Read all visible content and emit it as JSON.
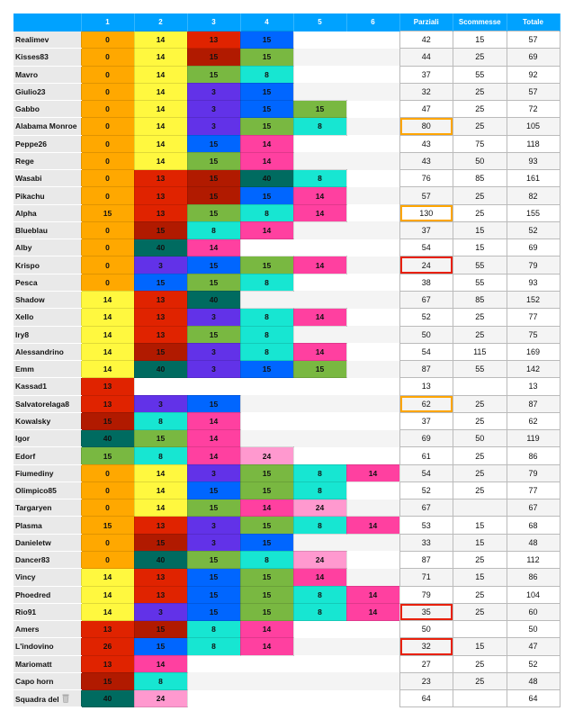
{
  "headers": [
    "",
    "1",
    "2",
    "3",
    "4",
    "5",
    "6",
    "Parziali",
    "Scommesse",
    "Totale"
  ],
  "colors": {
    "O": "#ffa800",
    "Y": "#fff83f",
    "R": "#e02300",
    "D": "#b11a00",
    "G": "#79b841",
    "C": "#17e6d2",
    "B": "#0066ff",
    "P": "#6232e8",
    "K": "#ff40a0",
    "L": "#ff99cf",
    "T": "#006b60"
  },
  "highlight_colors": {
    "orange": "#ffa500",
    "red": "#e8200c"
  },
  "rows": [
    {
      "name": "Realimev",
      "cells": [
        [
          "0",
          "O"
        ],
        [
          "14",
          "Y"
        ],
        [
          "13",
          "R"
        ],
        [
          "15",
          "B"
        ]
      ],
      "parziali": "42",
      "scommesse": "15",
      "totale": "57"
    },
    {
      "name": "Kisses83",
      "cells": [
        [
          "0",
          "O"
        ],
        [
          "14",
          "Y"
        ],
        [
          "15",
          "D"
        ],
        [
          "15",
          "G"
        ]
      ],
      "parziali": "44",
      "scommesse": "25",
      "totale": "69"
    },
    {
      "name": "Mavro",
      "cells": [
        [
          "0",
          "O"
        ],
        [
          "14",
          "Y"
        ],
        [
          "15",
          "G"
        ],
        [
          "8",
          "C"
        ]
      ],
      "parziali": "37",
      "scommesse": "55",
      "totale": "92"
    },
    {
      "name": "Giulio23",
      "cells": [
        [
          "0",
          "O"
        ],
        [
          "14",
          "Y"
        ],
        [
          "3",
          "P"
        ],
        [
          "15",
          "B"
        ]
      ],
      "parziali": "32",
      "scommesse": "25",
      "totale": "57"
    },
    {
      "name": "Gabbo",
      "cells": [
        [
          "0",
          "O"
        ],
        [
          "14",
          "Y"
        ],
        [
          "3",
          "P"
        ],
        [
          "15",
          "B"
        ],
        [
          "15",
          "G"
        ]
      ],
      "parziali": "47",
      "scommesse": "25",
      "totale": "72"
    },
    {
      "name": "Alabama Monroe",
      "cells": [
        [
          "0",
          "O"
        ],
        [
          "14",
          "Y"
        ],
        [
          "3",
          "P"
        ],
        [
          "15",
          "G"
        ],
        [
          "8",
          "C"
        ]
      ],
      "parziali": "80",
      "highlight": "orange",
      "scommesse": "25",
      "totale": "105"
    },
    {
      "name": "Peppe26",
      "cells": [
        [
          "0",
          "O"
        ],
        [
          "14",
          "Y"
        ],
        [
          "15",
          "B"
        ],
        [
          "14",
          "K"
        ]
      ],
      "parziali": "43",
      "scommesse": "75",
      "totale": "118"
    },
    {
      "name": "Rege",
      "cells": [
        [
          "0",
          "O"
        ],
        [
          "14",
          "Y"
        ],
        [
          "15",
          "G"
        ],
        [
          "14",
          "K"
        ]
      ],
      "parziali": "43",
      "scommesse": "50",
      "totale": "93"
    },
    {
      "name": "Wasabi",
      "cells": [
        [
          "0",
          "O"
        ],
        [
          "13",
          "R"
        ],
        [
          "15",
          "D"
        ],
        [
          "40",
          "T"
        ],
        [
          "8",
          "C"
        ]
      ],
      "parziali": "76",
      "scommesse": "85",
      "totale": "161"
    },
    {
      "name": "Pikachu",
      "cells": [
        [
          "0",
          "O"
        ],
        [
          "13",
          "R"
        ],
        [
          "15",
          "D"
        ],
        [
          "15",
          "B"
        ],
        [
          "14",
          "K"
        ]
      ],
      "parziali": "57",
      "scommesse": "25",
      "totale": "82"
    },
    {
      "name": "Alpha",
      "cells": [
        [
          "15",
          "O"
        ],
        [
          "13",
          "R"
        ],
        [
          "15",
          "G"
        ],
        [
          "8",
          "C"
        ],
        [
          "14",
          "K"
        ]
      ],
      "parziali": "130",
      "highlight": "orange",
      "scommesse": "25",
      "totale": "155"
    },
    {
      "name": "Blueblau",
      "cells": [
        [
          "0",
          "O"
        ],
        [
          "15",
          "D"
        ],
        [
          "8",
          "C"
        ],
        [
          "14",
          "K"
        ]
      ],
      "parziali": "37",
      "scommesse": "15",
      "totale": "52"
    },
    {
      "name": "Alby",
      "cells": [
        [
          "0",
          "O"
        ],
        [
          "40",
          "T"
        ],
        [
          "14",
          "K"
        ]
      ],
      "parziali": "54",
      "scommesse": "15",
      "totale": "69"
    },
    {
      "name": "Krispo",
      "cells": [
        [
          "0",
          "O"
        ],
        [
          "3",
          "P"
        ],
        [
          "15",
          "B"
        ],
        [
          "15",
          "G"
        ],
        [
          "14",
          "K"
        ]
      ],
      "parziali": "24",
      "highlight": "red",
      "scommesse": "55",
      "totale": "79"
    },
    {
      "name": "Pesca",
      "cells": [
        [
          "0",
          "O"
        ],
        [
          "15",
          "B"
        ],
        [
          "15",
          "G"
        ],
        [
          "8",
          "C"
        ]
      ],
      "parziali": "38",
      "scommesse": "55",
      "totale": "93"
    },
    {
      "name": "Shadow",
      "cells": [
        [
          "14",
          "Y"
        ],
        [
          "13",
          "R"
        ],
        [
          "40",
          "T"
        ]
      ],
      "parziali": "67",
      "scommesse": "85",
      "totale": "152"
    },
    {
      "name": "Xello",
      "cells": [
        [
          "14",
          "Y"
        ],
        [
          "13",
          "R"
        ],
        [
          "3",
          "P"
        ],
        [
          "8",
          "C"
        ],
        [
          "14",
          "K"
        ]
      ],
      "parziali": "52",
      "scommesse": "25",
      "totale": "77"
    },
    {
      "name": "Iry8",
      "cells": [
        [
          "14",
          "Y"
        ],
        [
          "13",
          "R"
        ],
        [
          "15",
          "G"
        ],
        [
          "8",
          "C"
        ]
      ],
      "parziali": "50",
      "scommesse": "25",
      "totale": "75"
    },
    {
      "name": "Alessandrino",
      "cells": [
        [
          "14",
          "Y"
        ],
        [
          "15",
          "D"
        ],
        [
          "3",
          "P"
        ],
        [
          "8",
          "C"
        ],
        [
          "14",
          "K"
        ]
      ],
      "parziali": "54",
      "scommesse": "115",
      "totale": "169"
    },
    {
      "name": "Emm",
      "cells": [
        [
          "14",
          "Y"
        ],
        [
          "40",
          "T"
        ],
        [
          "3",
          "P"
        ],
        [
          "15",
          "B"
        ],
        [
          "15",
          "G"
        ]
      ],
      "parziali": "87",
      "scommesse": "55",
      "totale": "142"
    },
    {
      "name": "Kassad1",
      "cells": [
        [
          "13",
          "R"
        ]
      ],
      "parziali": "13",
      "scommesse": "",
      "totale": "13"
    },
    {
      "name": "Salvatorelaga8",
      "cells": [
        [
          "13",
          "R"
        ],
        [
          "3",
          "P"
        ],
        [
          "15",
          "B"
        ]
      ],
      "parziali": "62",
      "highlight": "orange",
      "scommesse": "25",
      "totale": "87"
    },
    {
      "name": "Kowalsky",
      "cells": [
        [
          "15",
          "D"
        ],
        [
          "8",
          "C"
        ],
        [
          "14",
          "K"
        ]
      ],
      "parziali": "37",
      "scommesse": "25",
      "totale": "62"
    },
    {
      "name": "Igor",
      "cells": [
        [
          "40",
          "T"
        ],
        [
          "15",
          "G"
        ],
        [
          "14",
          "K"
        ]
      ],
      "parziali": "69",
      "scommesse": "50",
      "totale": "119"
    },
    {
      "name": "Edorf",
      "cells": [
        [
          "15",
          "G"
        ],
        [
          "8",
          "C"
        ],
        [
          "14",
          "K"
        ],
        [
          "24",
          "L"
        ]
      ],
      "parziali": "61",
      "scommesse": "25",
      "totale": "86"
    },
    {
      "name": "Fiumediny",
      "cells": [
        [
          "0",
          "O"
        ],
        [
          "14",
          "Y"
        ],
        [
          "3",
          "P"
        ],
        [
          "15",
          "G"
        ],
        [
          "8",
          "C"
        ],
        [
          "14",
          "K"
        ]
      ],
      "parziali": "54",
      "scommesse": "25",
      "totale": "79"
    },
    {
      "name": "Olimpico85",
      "cells": [
        [
          "0",
          "O"
        ],
        [
          "14",
          "Y"
        ],
        [
          "15",
          "B"
        ],
        [
          "15",
          "G"
        ],
        [
          "8",
          "C"
        ]
      ],
      "parziali": "52",
      "scommesse": "25",
      "totale": "77"
    },
    {
      "name": "Targaryen",
      "cells": [
        [
          "0",
          "O"
        ],
        [
          "14",
          "Y"
        ],
        [
          "15",
          "G"
        ],
        [
          "14",
          "K"
        ],
        [
          "24",
          "L"
        ]
      ],
      "parziali": "67",
      "scommesse": "",
      "totale": "67"
    },
    {
      "name": "Plasma",
      "cells": [
        [
          "15",
          "O"
        ],
        [
          "13",
          "R"
        ],
        [
          "3",
          "P"
        ],
        [
          "15",
          "G"
        ],
        [
          "8",
          "C"
        ],
        [
          "14",
          "K"
        ]
      ],
      "parziali": "53",
      "scommesse": "15",
      "totale": "68"
    },
    {
      "name": "Danieletw",
      "cells": [
        [
          "0",
          "O"
        ],
        [
          "15",
          "D"
        ],
        [
          "3",
          "P"
        ],
        [
          "15",
          "B"
        ]
      ],
      "parziali": "33",
      "scommesse": "15",
      "totale": "48"
    },
    {
      "name": "Dancer83",
      "cells": [
        [
          "0",
          "O"
        ],
        [
          "40",
          "T"
        ],
        [
          "15",
          "G"
        ],
        [
          "8",
          "C"
        ],
        [
          "24",
          "L"
        ]
      ],
      "parziali": "87",
      "scommesse": "25",
      "totale": "112"
    },
    {
      "name": "Vincy",
      "cells": [
        [
          "14",
          "Y"
        ],
        [
          "13",
          "R"
        ],
        [
          "15",
          "B"
        ],
        [
          "15",
          "G"
        ],
        [
          "14",
          "K"
        ]
      ],
      "parziali": "71",
      "scommesse": "15",
      "totale": "86"
    },
    {
      "name": "Phoedred",
      "cells": [
        [
          "14",
          "Y"
        ],
        [
          "13",
          "R"
        ],
        [
          "15",
          "B"
        ],
        [
          "15",
          "G"
        ],
        [
          "8",
          "C"
        ],
        [
          "14",
          "K"
        ]
      ],
      "parziali": "79",
      "scommesse": "25",
      "totale": "104"
    },
    {
      "name": "Rio91",
      "cells": [
        [
          "14",
          "Y"
        ],
        [
          "3",
          "P"
        ],
        [
          "15",
          "B"
        ],
        [
          "15",
          "G"
        ],
        [
          "8",
          "C"
        ],
        [
          "14",
          "K"
        ]
      ],
      "parziali": "35",
      "highlight": "red",
      "scommesse": "25",
      "totale": "60"
    },
    {
      "name": "Amers",
      "cells": [
        [
          "13",
          "R"
        ],
        [
          "15",
          "D"
        ],
        [
          "8",
          "C"
        ],
        [
          "14",
          "K"
        ]
      ],
      "parziali": "50",
      "scommesse": "",
      "totale": "50"
    },
    {
      "name": "L'indovino",
      "cells": [
        [
          "26",
          "R"
        ],
        [
          "15",
          "B"
        ],
        [
          "8",
          "C"
        ],
        [
          "14",
          "K"
        ]
      ],
      "parziali": "32",
      "highlight": "red",
      "scommesse": "15",
      "totale": "47"
    },
    {
      "name": "Mariomatt",
      "cells": [
        [
          "13",
          "R"
        ],
        [
          "14",
          "K"
        ]
      ],
      "parziali": "27",
      "scommesse": "25",
      "totale": "52"
    },
    {
      "name": "Capo horn",
      "cells": [
        [
          "15",
          "D"
        ],
        [
          "8",
          "C"
        ]
      ],
      "parziali": "23",
      "scommesse": "25",
      "totale": "48"
    },
    {
      "name": "Squadra del",
      "name_icon": "trash-icon",
      "cells": [
        [
          "40",
          "T"
        ],
        [
          "24",
          "L"
        ]
      ],
      "parziali": "64",
      "scommesse": "",
      "totale": "64"
    }
  ]
}
